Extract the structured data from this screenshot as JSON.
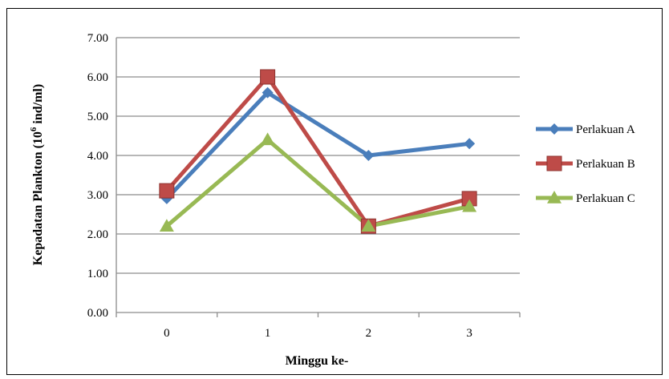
{
  "chart_data": {
    "type": "line",
    "title": "",
    "xlabel": "Minggu ke-",
    "ylabel": {
      "prefix": "Kepadatan Plankton (10",
      "superscript": "6",
      "suffix": " ind/ml)"
    },
    "x": [
      "0",
      "1",
      "2",
      "3"
    ],
    "ylim": [
      0,
      7
    ],
    "yticks": [
      "0.00",
      "1.00",
      "2.00",
      "3.00",
      "4.00",
      "5.00",
      "6.00",
      "7.00"
    ],
    "grid": true,
    "legend_position": "right",
    "series": [
      {
        "name": "Perlakuan A",
        "values": [
          2.9,
          5.6,
          4.0,
          4.3
        ],
        "color": "#4a7ebb",
        "marker": "diamond"
      },
      {
        "name": "Perlakuan B",
        "values": [
          3.1,
          6.0,
          2.2,
          2.9
        ],
        "color": "#be4b48",
        "marker": "square"
      },
      {
        "name": "Perlakuan C",
        "values": [
          2.2,
          4.4,
          2.2,
          2.7
        ],
        "color": "#98b954",
        "marker": "triangle"
      }
    ]
  }
}
